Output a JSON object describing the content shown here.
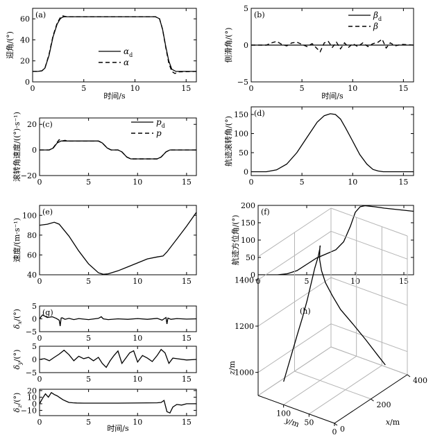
{
  "chart_data": [
    {
      "id": "a",
      "type": "line",
      "panel_label": "(a)",
      "xlabel": "时间/s",
      "ylabel": "迎角/(°)",
      "xlim": [
        0,
        16
      ],
      "ylim": [
        0,
        70
      ],
      "xticks": [
        "0",
        "5",
        "10",
        "15"
      ],
      "yticks": [
        "0",
        "20",
        "40",
        "60"
      ],
      "legend_position": "lower-right",
      "series": [
        {
          "name": "αd",
          "name_base": "α",
          "name_sub": "d",
          "style": "solid",
          "x": [
            0,
            0.5,
            0.9,
            1.2,
            1.6,
            2.0,
            2.4,
            2.7,
            2.9,
            3.1,
            3.4,
            4,
            8,
            12,
            12.4,
            12.7,
            13.0,
            13.3,
            13.6,
            14.0,
            14.5,
            16
          ],
          "y": [
            10,
            10,
            10.5,
            13,
            25,
            43,
            55,
            60,
            61.5,
            62,
            62,
            62,
            62,
            62,
            60,
            50,
            34,
            20,
            12,
            10,
            10,
            10
          ]
        },
        {
          "name": "α",
          "name_base": "α",
          "name_sub": "",
          "style": "dashed",
          "x": [
            0,
            0.5,
            0.9,
            1.2,
            1.6,
            2.0,
            2.4,
            2.7,
            2.9,
            3.1,
            3.4,
            4,
            8,
            12,
            12.4,
            12.7,
            13.0,
            13.3,
            13.6,
            13.9,
            14.3,
            16
          ],
          "y": [
            10,
            10,
            10.5,
            13,
            26,
            44,
            56,
            61,
            63,
            62.5,
            62,
            62,
            62,
            62,
            60,
            50,
            33,
            18,
            10,
            8,
            9.5,
            10
          ]
        }
      ]
    },
    {
      "id": "b",
      "type": "line",
      "panel_label": "(b)",
      "xlabel": "时间/s",
      "ylabel": "侧滑角/(°)",
      "xlim": [
        0,
        16
      ],
      "ylim": [
        -5,
        5
      ],
      "xticks": [
        "0",
        "5",
        "10",
        "15"
      ],
      "yticks": [
        "−5",
        "0",
        "5"
      ],
      "legend_position": "top-right",
      "series": [
        {
          "name": "βd",
          "name_base": "β",
          "name_sub": "d",
          "style": "solid",
          "x": [
            0,
            16
          ],
          "y": [
            0,
            0
          ]
        },
        {
          "name": "β",
          "name_base": "β",
          "name_sub": "",
          "style": "dashed",
          "x": [
            0,
            1.5,
            2,
            2.5,
            3,
            3.5,
            4,
            4.5,
            5,
            5.5,
            6,
            6.5,
            6.8,
            7.2,
            7.6,
            8,
            8.4,
            8.8,
            9.2,
            9.6,
            10,
            10.5,
            11,
            11.5,
            12,
            12.5,
            12.9,
            13.3,
            13.7,
            14.2,
            14.8,
            16
          ],
          "y": [
            0,
            0,
            0.3,
            0.5,
            0.1,
            -0.1,
            0.3,
            0.4,
            0.1,
            -0.2,
            0.2,
            -0.5,
            -0.9,
            0.3,
            0.5,
            -0.3,
            0.4,
            -0.5,
            0.3,
            -0.3,
            0.2,
            -0.2,
            0.3,
            -0.2,
            0.2,
            0.4,
            0.8,
            -0.4,
            0.3,
            -0.1,
            0.1,
            0
          ]
        }
      ]
    },
    {
      "id": "c",
      "type": "line",
      "panel_label": "(c)",
      "xlabel": "",
      "ylabel": "滚转角速度/((°)·s⁻¹)",
      "xlim": [
        0,
        16
      ],
      "ylim": [
        -20,
        25
      ],
      "xticks": [
        "0",
        "5",
        "10",
        "15"
      ],
      "yticks": [
        "−20",
        "0",
        "20"
      ],
      "legend_position": "top-right",
      "series": [
        {
          "name": "pd",
          "name_base": "p",
          "name_sub": "d",
          "style": "solid",
          "x": [
            0,
            1.0,
            1.4,
            1.8,
            2.2,
            6.0,
            6.4,
            6.9,
            7.3,
            8.0,
            8.4,
            8.9,
            9.3,
            12.0,
            12.4,
            12.9,
            13.3,
            16
          ],
          "y": [
            0,
            0,
            1.5,
            5.5,
            7,
            7,
            5.5,
            1.5,
            0,
            0,
            -1.5,
            -5.5,
            -7,
            -7,
            -5.5,
            -1.5,
            0,
            0
          ]
        },
        {
          "name": "p",
          "name_base": "p",
          "name_sub": "",
          "style": "dashed",
          "x": [
            0,
            1.0,
            1.4,
            1.8,
            2.0,
            2.3,
            2.6,
            2.9,
            6.0,
            6.4,
            6.9,
            7.3,
            8.0,
            8.4,
            8.9,
            9.3,
            12.0,
            12.4,
            12.9,
            13.3,
            16
          ],
          "y": [
            0,
            0,
            1.8,
            6,
            8,
            7,
            7.5,
            7,
            7,
            5.5,
            1.5,
            0,
            0,
            -1.5,
            -5.5,
            -7,
            -7,
            -5.5,
            -1.5,
            0,
            0
          ]
        }
      ]
    },
    {
      "id": "d",
      "type": "line",
      "panel_label": "(d)",
      "xlabel": "",
      "ylabel": "航迹滚转角/(°)",
      "xlim": [
        0,
        16
      ],
      "ylim": [
        -10,
        170
      ],
      "xticks": [
        "0",
        "5",
        "10",
        "15"
      ],
      "yticks": [
        "0",
        "50",
        "100",
        "150"
      ],
      "series": [
        {
          "name": "",
          "style": "solid",
          "x": [
            0,
            1.5,
            2.5,
            3.5,
            4.5,
            5.5,
            6.5,
            7.2,
            7.8,
            8.3,
            8.8,
            9.3,
            10,
            10.7,
            11.4,
            12,
            12.5,
            13,
            14,
            16
          ],
          "y": [
            0,
            0,
            5,
            20,
            50,
            90,
            130,
            147,
            152,
            150,
            138,
            115,
            80,
            45,
            20,
            6,
            2,
            0,
            0,
            0
          ]
        }
      ]
    },
    {
      "id": "e",
      "type": "line",
      "panel_label": "(e)",
      "xlabel": "",
      "ylabel": "速度/(m·s⁻¹)",
      "xlim": [
        0,
        16
      ],
      "ylim": [
        40,
        110
      ],
      "xticks": [
        "0",
        "5",
        "10",
        "15"
      ],
      "yticks": [
        "40",
        "60",
        "80",
        "100"
      ],
      "series": [
        {
          "name": "",
          "style": "solid",
          "x": [
            0,
            0.8,
            1.5,
            2.0,
            3,
            4,
            5,
            6,
            6.5,
            7,
            8,
            9,
            10,
            11,
            12,
            12.6,
            13,
            14,
            15,
            16
          ],
          "y": [
            90,
            91,
            93,
            91,
            79,
            64,
            51,
            42,
            40.5,
            41,
            44,
            48,
            52,
            56,
            58,
            59,
            63,
            76,
            89,
            103
          ]
        }
      ]
    },
    {
      "id": "f",
      "type": "line",
      "panel_label": "(f)",
      "xlabel": "",
      "ylabel": "航迹方位角/(°)",
      "xlim": [
        0,
        16
      ],
      "ylim": [
        0,
        200
      ],
      "xticks": [
        "0",
        "5",
        "10",
        "15"
      ],
      "yticks": [
        "0",
        "50",
        "100",
        "150",
        "200"
      ],
      "series": [
        {
          "name": "",
          "style": "solid",
          "x": [
            0,
            2,
            3,
            4,
            5,
            6,
            7,
            8,
            8.8,
            9.5,
            10,
            10.5,
            11,
            12,
            13,
            14,
            15,
            16
          ],
          "y": [
            0,
            0,
            3,
            12,
            30,
            48,
            60,
            72,
            95,
            140,
            180,
            196,
            199,
            196,
            192,
            189,
            186,
            183
          ]
        }
      ]
    },
    {
      "id": "g1",
      "type": "line",
      "panel_label": "(g)",
      "xlabel": "",
      "ylabel": "δx/(°)",
      "ylabel_base": "δ",
      "ylabel_sub": "x",
      "ylabel_unit": "/(°)",
      "xlim": [
        0,
        16
      ],
      "ylim": [
        -5,
        5
      ],
      "xticks": [
        "0",
        "5",
        "10",
        "15"
      ],
      "yticks": [
        "−5",
        "0",
        "5"
      ],
      "series": [
        {
          "name": "",
          "style": "solid",
          "x": [
            0,
            0.3,
            0.8,
            1.3,
            1.7,
            2.0,
            2.1,
            2.2,
            2.3,
            2.6,
            3.0,
            3.5,
            4,
            5,
            6,
            6.3,
            6.5,
            7,
            8,
            9,
            10,
            11,
            12,
            12.5,
            12.9,
            13.0,
            13.1,
            13.4,
            14,
            15,
            16
          ],
          "y": [
            0,
            1.5,
            0.5,
            0.8,
            0.2,
            -0.5,
            -2.8,
            0.3,
            0.4,
            -0.2,
            0.2,
            -0.3,
            0.1,
            -0.3,
            0.2,
            0.8,
            0,
            -0.3,
            0,
            -0.2,
            0.1,
            -0.2,
            0.2,
            -0.5,
            0.5,
            -2,
            0.3,
            -0.2,
            0.1,
            -0.1,
            0
          ]
        }
      ]
    },
    {
      "id": "g2",
      "type": "line",
      "panel_label": "",
      "xlabel": "",
      "ylabel": "δy/(°)",
      "ylabel_base": "δ",
      "ylabel_sub": "y",
      "ylabel_unit": "/(°)",
      "xlim": [
        0,
        16
      ],
      "ylim": [
        -5,
        5
      ],
      "xticks": [
        "0",
        "5",
        "10",
        "15"
      ],
      "yticks": [
        "−5",
        "0",
        "5"
      ],
      "series": [
        {
          "name": "",
          "style": "solid",
          "x": [
            0,
            0.5,
            1.0,
            1.5,
            2.0,
            2.5,
            3.0,
            3.5,
            4.0,
            4.5,
            5.0,
            5.5,
            6.0,
            6.4,
            6.8,
            7.2,
            7.6,
            8.0,
            8.4,
            8.8,
            9.2,
            9.6,
            10.0,
            10.5,
            11.0,
            11.5,
            12.0,
            12.4,
            12.8,
            13.2,
            13.6,
            14,
            15,
            16
          ],
          "y": [
            0,
            0.3,
            -0.5,
            0.8,
            2,
            3.5,
            1.8,
            -0.5,
            1.2,
            0.3,
            0.8,
            -0.5,
            0.8,
            -1.5,
            -3,
            -0.5,
            1.5,
            3.2,
            -1.5,
            0.5,
            2.5,
            3.3,
            -1,
            1.5,
            0.5,
            -0.8,
            1.5,
            3.8,
            2.5,
            -1.5,
            0.5,
            0.3,
            -0.2,
            0
          ]
        }
      ]
    },
    {
      "id": "g3",
      "type": "line",
      "panel_label": "",
      "xlabel": "时间/s",
      "ylabel": "δz/(°)",
      "ylabel_base": "δ",
      "ylabel_sub": "z",
      "ylabel_unit": "/(°)",
      "xlim": [
        0,
        16
      ],
      "ylim": [
        -18,
        22
      ],
      "xticks": [
        "0",
        "5",
        "10",
        "15"
      ],
      "yticks": [
        "−10",
        "0",
        "10",
        "20"
      ],
      "series": [
        {
          "name": "",
          "style": "solid",
          "x": [
            0,
            0.3,
            0.6,
            0.9,
            1.2,
            1.5,
            1.8,
            2.1,
            2.4,
            2.7,
            3.0,
            3.4,
            3.8,
            4.5,
            5,
            8,
            12,
            12.4,
            12.7,
            13.0,
            13.3,
            13.6,
            14,
            14.5,
            15,
            16
          ],
          "y": [
            0,
            8,
            15,
            10,
            17,
            14,
            12,
            9,
            6,
            4,
            2,
            1.5,
            1.2,
            1,
            1,
            1,
            1.5,
            2,
            5,
            -12,
            -14,
            -5,
            -1,
            -2,
            0,
            0
          ]
        }
      ]
    },
    {
      "id": "h",
      "type": "line3d",
      "panel_label": "(h)",
      "xlabel": "x/m",
      "ylabel": "y/m",
      "zlabel": "z/m",
      "xlim": [
        0,
        400
      ],
      "ylim": [
        0,
        150
      ],
      "zlim": [
        900,
        1500
      ],
      "xticks": [
        "0",
        "200",
        "400"
      ],
      "yticks": [
        "0",
        "50",
        "100"
      ],
      "zticks": [
        "1000",
        "1200",
        "1400"
      ],
      "series": [
        {
          "name": "",
          "style": "solid",
          "x": [
            0,
            20,
            40,
            60,
            85,
            110,
            135,
            160,
            190,
            215,
            235,
            250,
            260,
            265,
            270,
            275,
            280,
            285,
            295,
            310,
            325,
            335
          ],
          "y": [
            100,
            98,
            96,
            94,
            93,
            93,
            94,
            96,
            100,
            106,
            112,
            118,
            122,
            124,
            122,
            116,
            104,
            90,
            70,
            50,
            32,
            20
          ],
          "z": [
            1000,
            1060,
            1120,
            1180,
            1240,
            1300,
            1360,
            1410,
            1440,
            1455,
            1455,
            1440,
            1410,
            1370,
            1320,
            1270,
            1220,
            1170,
            1120,
            1060,
            1000,
            960
          ]
        }
      ]
    }
  ]
}
